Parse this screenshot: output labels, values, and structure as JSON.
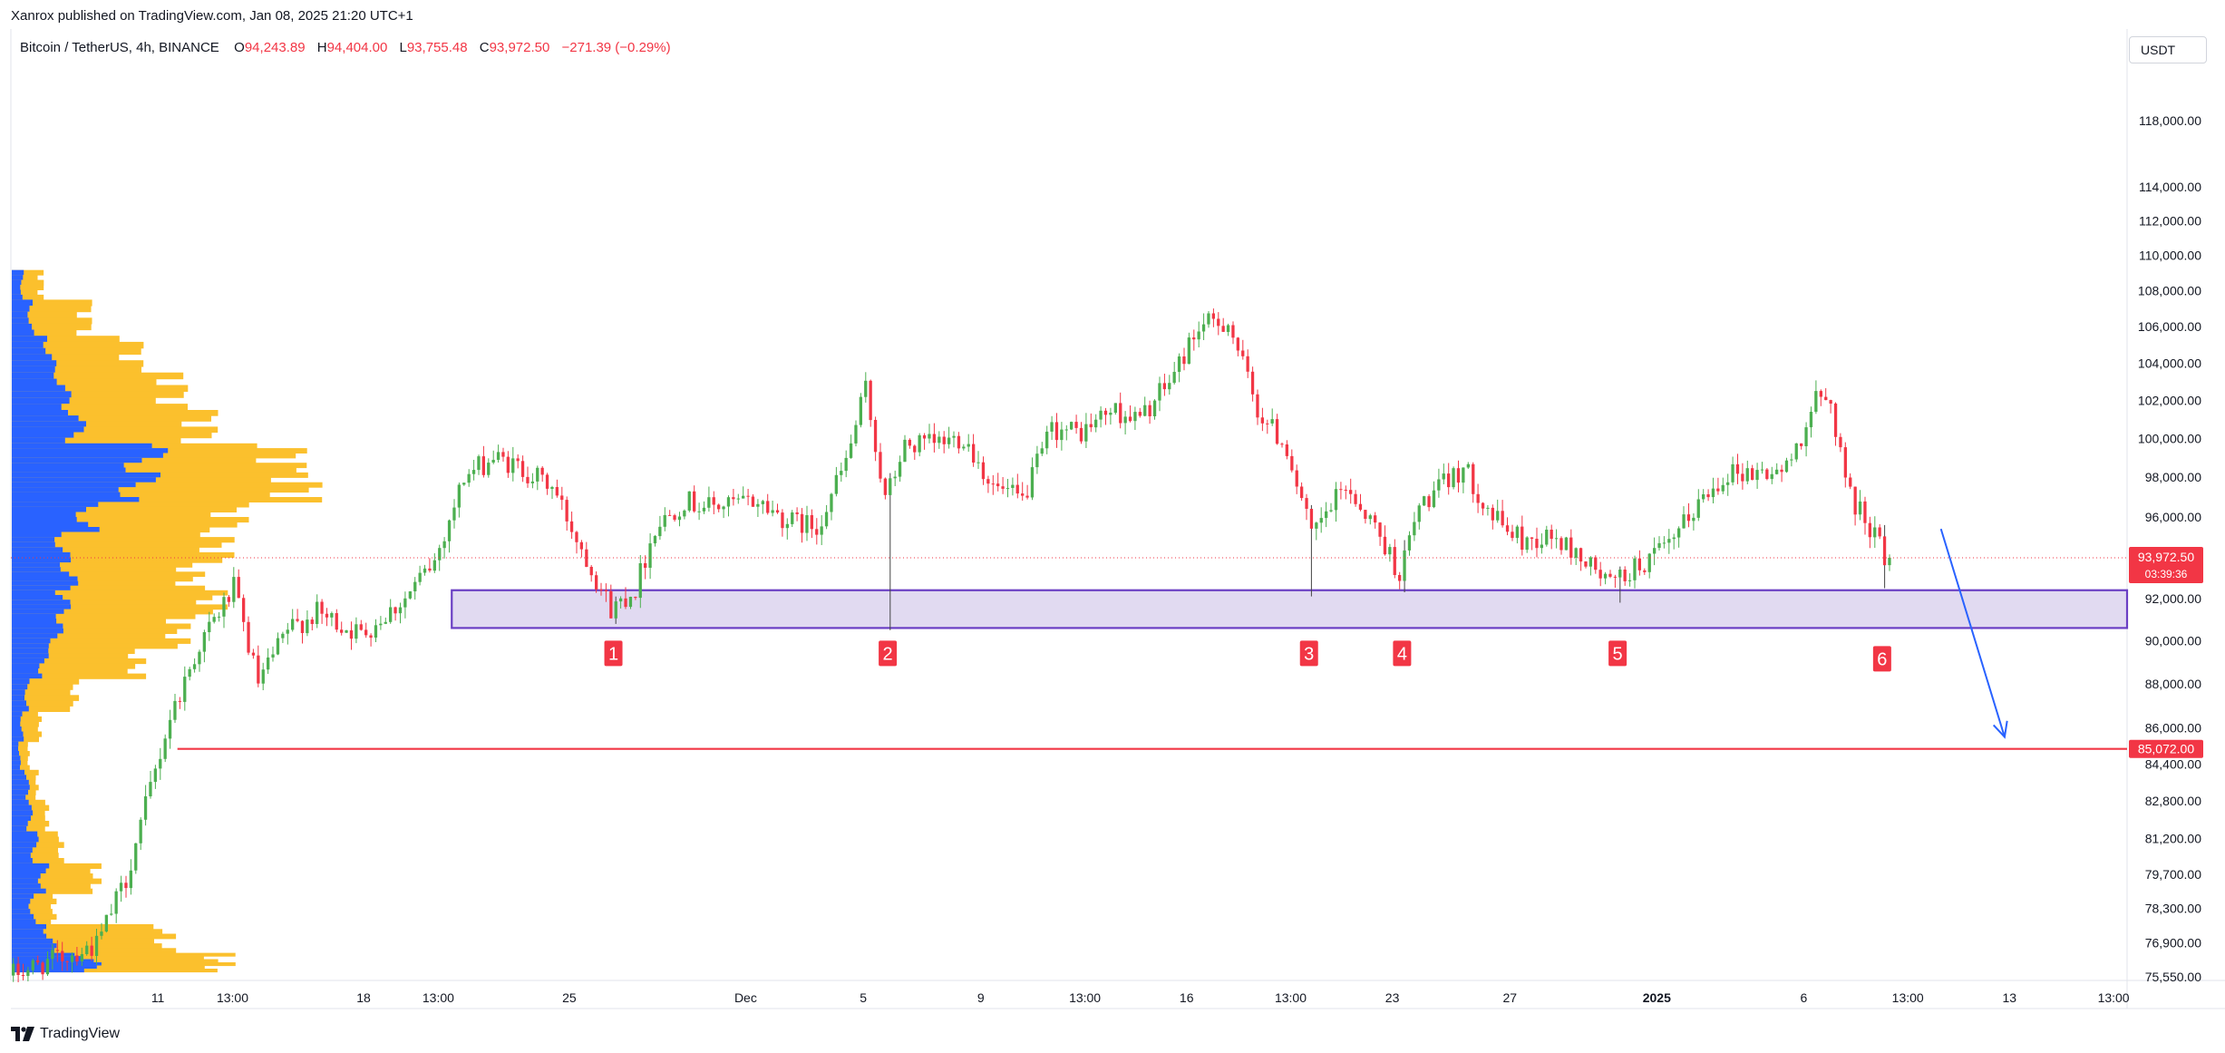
{
  "header": {
    "published": "Xanrox published on TradingView.com, Jan 08, 2025 21:20 UTC+1"
  },
  "legend": {
    "symbol": "Bitcoin / TetherUS, 4h, BINANCE",
    "open_label": "O",
    "open": "94,243.89",
    "high_label": "H",
    "high": "94,404.00",
    "low_label": "L",
    "low": "93,755.48",
    "close_label": "C",
    "close": "93,972.50",
    "change": "−271.39 (−0.29%)"
  },
  "currency": "USDT",
  "footer": {
    "brand": "TradingView"
  },
  "colors": {
    "up": "#089981",
    "up_candle": "#4caf50",
    "down": "#f23645",
    "support_zone_fill": "#ded6f0",
    "support_zone_border": "#6a3fc4",
    "target_line": "#f23645",
    "arrow": "#2962ff",
    "vp_blue": "#2962ff",
    "vp_yellow": "#fbc02d",
    "grid": "#f0f3fa"
  },
  "chart_data": {
    "type": "candlestick",
    "symbol": "BTCUSDT",
    "interval": "4h",
    "y_axis": {
      "scale": "log",
      "range": [
        75550,
        123000
      ],
      "tick_labels": [
        "118,000.00",
        "114,000.00",
        "112,000.00",
        "110,000.00",
        "108,000.00",
        "106,000.00",
        "104,000.00",
        "102,000.00",
        "100,000.00",
        "98,000.00",
        "96,000.00",
        "92,000.00",
        "90,000.00",
        "88,000.00",
        "86,000.00",
        "84,400.00",
        "82,800.00",
        "81,200.00",
        "79,700.00",
        "78,300.00",
        "76,900.00",
        "75,550.00"
      ],
      "tick_values": [
        118000,
        114000,
        112000,
        110000,
        108000,
        106000,
        104000,
        102000,
        100000,
        98000,
        96000,
        92000,
        90000,
        88000,
        86000,
        84400,
        82800,
        81200,
        79700,
        78300,
        76900,
        75550
      ]
    },
    "x_axis": {
      "range": [
        "2024-11-06T00:00",
        "2025-01-17T00:00"
      ],
      "ticks": [
        {
          "label": "11",
          "t": "2024-11-11T00:00",
          "bold": false
        },
        {
          "label": "13:00",
          "t": "2024-11-13T13:00",
          "bold": false
        },
        {
          "label": "18",
          "t": "2024-11-18T00:00",
          "bold": false
        },
        {
          "label": "13:00",
          "t": "2024-11-20T13:00",
          "bold": false
        },
        {
          "label": "25",
          "t": "2024-11-25T00:00",
          "bold": false
        },
        {
          "label": "Dec",
          "t": "2024-12-01T00:00",
          "bold": false
        },
        {
          "label": "5",
          "t": "2024-12-05T00:00",
          "bold": false
        },
        {
          "label": "9",
          "t": "2024-12-09T00:00",
          "bold": false
        },
        {
          "label": "13:00",
          "t": "2024-12-12T13:00",
          "bold": false
        },
        {
          "label": "16",
          "t": "2024-12-16T00:00",
          "bold": false
        },
        {
          "label": "13:00",
          "t": "2024-12-19T13:00",
          "bold": false
        },
        {
          "label": "23",
          "t": "2024-12-23T00:00",
          "bold": false
        },
        {
          "label": "27",
          "t": "2024-12-27T00:00",
          "bold": false
        },
        {
          "label": "2025",
          "t": "2025-01-01T00:00",
          "bold": true
        },
        {
          "label": "6",
          "t": "2025-01-06T00:00",
          "bold": false
        },
        {
          "label": "13:00",
          "t": "2025-01-09T13:00",
          "bold": false
        },
        {
          "label": "13",
          "t": "2025-01-13T00:00",
          "bold": false
        },
        {
          "label": "13:00",
          "t": "2025-01-16T13:00",
          "bold": false
        }
      ]
    },
    "price_path": [
      [
        "2024-11-06T00:00",
        75600
      ],
      [
        "2024-11-09T00:00",
        76800
      ],
      [
        "2024-11-10T00:00",
        79500
      ],
      [
        "2024-11-11T12:00",
        86500
      ],
      [
        "2024-11-12T12:00",
        89800
      ],
      [
        "2024-11-13T16:00",
        92500
      ],
      [
        "2024-11-14T12:00",
        88000
      ],
      [
        "2024-11-15T12:00",
        90500
      ],
      [
        "2024-11-16T12:00",
        91300
      ],
      [
        "2024-11-18T00:00",
        90300
      ],
      [
        "2024-11-19T12:00",
        92000
      ],
      [
        "2024-11-20T12:00",
        93800
      ],
      [
        "2024-11-21T12:00",
        98000
      ],
      [
        "2024-11-22T12:00",
        99000
      ],
      [
        "2024-11-23T12:00",
        98400
      ],
      [
        "2024-11-24T12:00",
        97500
      ],
      [
        "2024-11-25T16:00",
        94000
      ],
      [
        "2024-11-26T12:00",
        91500
      ],
      [
        "2024-11-27T08:00",
        92500
      ],
      [
        "2024-11-28T00:00",
        95500
      ],
      [
        "2024-11-29T00:00",
        96800
      ],
      [
        "2024-11-30T00:00",
        96500
      ],
      [
        "2024-12-01T12:00",
        96800
      ],
      [
        "2024-12-02T12:00",
        95800
      ],
      [
        "2024-12-03T12:00",
        95500
      ],
      [
        "2024-12-04T12:00",
        98800
      ],
      [
        "2024-12-05T04:00",
        102600
      ],
      [
        "2024-12-05T20:00",
        96800
      ],
      [
        "2024-12-06T12:00",
        99600
      ],
      [
        "2024-12-07T12:00",
        99700
      ],
      [
        "2024-12-08T12:00",
        100100
      ],
      [
        "2024-12-09T12:00",
        97500
      ],
      [
        "2024-12-10T12:00",
        96800
      ],
      [
        "2024-12-11T12:00",
        100500
      ],
      [
        "2024-12-12T12:00",
        100300
      ],
      [
        "2024-12-13T12:00",
        101500
      ],
      [
        "2024-12-14T12:00",
        101000
      ],
      [
        "2024-12-15T12:00",
        103000
      ],
      [
        "2024-12-16T12:00",
        106000
      ],
      [
        "2024-12-17T12:00",
        106300
      ],
      [
        "2024-12-18T12:00",
        101500
      ],
      [
        "2024-12-19T12:00",
        99500
      ],
      [
        "2024-12-20T08:00",
        95000
      ],
      [
        "2024-12-21T12:00",
        97600
      ],
      [
        "2024-12-22T12:00",
        95500
      ],
      [
        "2024-12-23T08:00",
        93200
      ],
      [
        "2024-12-24T00:00",
        96500
      ],
      [
        "2024-12-25T12:00",
        98500
      ],
      [
        "2024-12-26T12:00",
        96000
      ],
      [
        "2024-12-27T12:00",
        94800
      ],
      [
        "2024-12-28T12:00",
        95000
      ],
      [
        "2024-12-29T12:00",
        94000
      ],
      [
        "2024-12-30T12:00",
        92700
      ],
      [
        "2024-12-31T12:00",
        93600
      ],
      [
        "2025-01-01T12:00",
        94500
      ],
      [
        "2025-01-02T12:00",
        96700
      ],
      [
        "2025-01-03T12:00",
        98300
      ],
      [
        "2025-01-04T12:00",
        98200
      ],
      [
        "2025-01-05T12:00",
        98400
      ],
      [
        "2025-01-06T12:00",
        102000
      ],
      [
        "2025-01-07T00:00",
        101800
      ],
      [
        "2025-01-07T16:00",
        97000
      ],
      [
        "2025-01-08T12:00",
        95200
      ],
      [
        "2025-01-08T20:00",
        93972.5
      ]
    ],
    "support_zone": {
      "from": "2024-11-21T00:00",
      "to": "2025-01-17T00:00",
      "top": 92400,
      "bottom": 90600
    },
    "wicks_into_zone": [
      {
        "t": "2024-11-26T12:00",
        "low": 90791
      },
      {
        "t": "2024-12-05T20:00",
        "low": 90500
      },
      {
        "t": "2024-12-20T04:00",
        "low": 92100
      },
      {
        "t": "2024-12-23T08:00",
        "low": 92300
      },
      {
        "t": "2024-12-30T16:00",
        "low": 91800
      },
      {
        "t": "2025-01-08T16:00",
        "low": 92500
      }
    ],
    "touch_labels": [
      {
        "label": "1",
        "t": "2024-11-26T12:00"
      },
      {
        "label": "2",
        "t": "2024-12-05T20:00"
      },
      {
        "label": "3",
        "t": "2024-12-20T04:00"
      },
      {
        "label": "4",
        "t": "2024-12-23T08:00"
      },
      {
        "label": "5",
        "t": "2024-12-30T16:00"
      },
      {
        "label": "6",
        "t": "2025-01-08T16:00"
      }
    ],
    "target_line": {
      "from": "2024-11-11T16:00",
      "price": 85072,
      "label": "85,072.00"
    },
    "arrow": {
      "from": [
        "2025-01-10T16:00",
        95400
      ],
      "to": [
        "2025-01-12T20:00",
        85600
      ]
    },
    "last_price": {
      "price": 93972.5,
      "label": "93,972.50",
      "countdown": "03:39:36"
    },
    "volume_profile": [
      {
        "price": 108500,
        "blue": 8,
        "total": 22
      },
      {
        "price": 106500,
        "blue": 15,
        "total": 55
      },
      {
        "price": 104500,
        "blue": 30,
        "total": 90
      },
      {
        "price": 102500,
        "blue": 40,
        "total": 120
      },
      {
        "price": 100500,
        "blue": 50,
        "total": 140
      },
      {
        "price": 99000,
        "blue": 105,
        "total": 200
      },
      {
        "price": 97500,
        "blue": 100,
        "total": 210
      },
      {
        "price": 96000,
        "blue": 60,
        "total": 160
      },
      {
        "price": 94500,
        "blue": 40,
        "total": 150
      },
      {
        "price": 93000,
        "blue": 45,
        "total": 130
      },
      {
        "price": 91800,
        "blue": 40,
        "total": 145
      },
      {
        "price": 90300,
        "blue": 35,
        "total": 120
      },
      {
        "price": 89000,
        "blue": 25,
        "total": 90
      },
      {
        "price": 87500,
        "blue": 12,
        "total": 45
      },
      {
        "price": 86000,
        "blue": 8,
        "total": 20
      },
      {
        "price": 84800,
        "blue": 6,
        "total": 12
      },
      {
        "price": 83500,
        "blue": 12,
        "total": 18
      },
      {
        "price": 82200,
        "blue": 14,
        "total": 25
      },
      {
        "price": 80800,
        "blue": 18,
        "total": 35
      },
      {
        "price": 79500,
        "blue": 25,
        "total": 60
      },
      {
        "price": 78300,
        "blue": 16,
        "total": 30
      },
      {
        "price": 77000,
        "blue": 30,
        "total": 110
      },
      {
        "price": 76000,
        "blue": 60,
        "total": 150
      }
    ]
  }
}
